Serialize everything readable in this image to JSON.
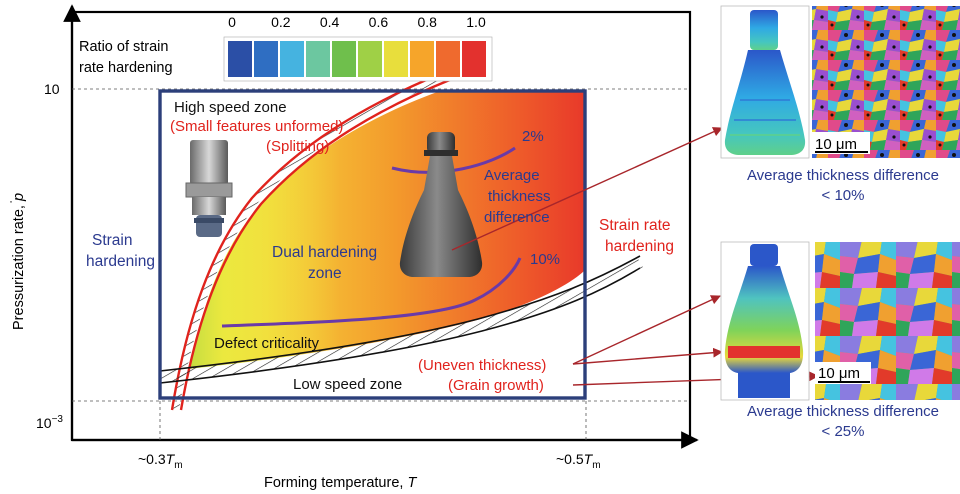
{
  "figure": {
    "axes": {
      "x_title": "Forming temperature, ",
      "x_title_var": "T",
      "y_title": "Pressurization rate, ",
      "y_title_var": "p",
      "y_tick_high": "10",
      "y_tick_low_base": "10",
      "y_tick_low_exp": "−3",
      "x_tick_left": "~0.3",
      "x_tick_right": "~0.5",
      "x_tick_var": "T",
      "x_tick_sub": "m"
    },
    "colorbar": {
      "title_line1": "Ratio of strain",
      "title_line2": "rate hardening",
      "ticks": [
        "0",
        "0.2",
        "0.4",
        "0.6",
        "0.8",
        "1.0"
      ],
      "colors": [
        "#2b4fa6",
        "#2f6ec2",
        "#45b3e0",
        "#6cc7a0",
        "#6fbf4c",
        "#9fd046",
        "#e8de3c",
        "#f6a52a",
        "#ef6a2e",
        "#e3312e"
      ]
    },
    "labels": {
      "high_speed": "High speed zone",
      "small_features": "(Small features unformed)",
      "splitting": "(Splitting)",
      "strain_hardening_1": "Strain",
      "strain_hardening_2": "hardening",
      "dual_1": "Dual hardening",
      "dual_2": "zone",
      "pct_2": "2%",
      "pct_10": "10%",
      "avg_1": "Average",
      "avg_2": "thickness",
      "avg_3": "difference",
      "srh_1": "Strain rate",
      "srh_2": "hardening",
      "defect": "Defect criticality",
      "low_speed": "Low speed zone",
      "uneven": "(Uneven thickness)",
      "grain": "(Grain growth)"
    },
    "right_panel": {
      "scale_top": "10 μm",
      "scale_bottom": "10 μm",
      "caption_top_1": "Average thickness difference",
      "caption_top_2": "< 10%",
      "caption_bottom_1": "Average thickness difference",
      "caption_bottom_2": "< 25%"
    },
    "colors": {
      "red_text": "#e0231d",
      "blue_text": "#2b3a8f",
      "purple_line": "#6a3aa8",
      "frame": "#2c3f7a",
      "arrow": "#a8262b"
    }
  }
}
